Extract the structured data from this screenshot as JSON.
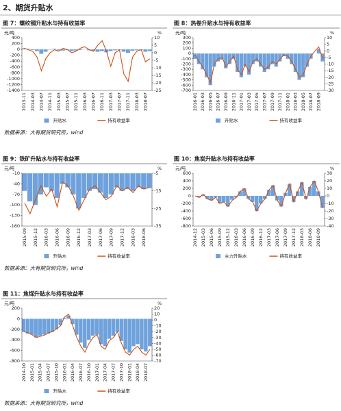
{
  "heading": "2、期货升贴水",
  "chart_data": [
    {
      "type": "bar-line",
      "title": "图 7：螺纹钢升贴水与持有收益率",
      "y_label": "元/吨",
      "y2_label": "%",
      "source": "数据来源：大有期货研究所，wind",
      "categories": [
        "2013-11",
        null,
        "2014-03",
        null,
        "2014-07",
        null,
        "2014-11",
        null,
        "2015-03",
        null,
        "2015-07",
        null,
        "2015-11",
        null,
        "2016-03",
        null,
        "2016-07",
        null,
        "2016-11",
        null,
        "2017-03",
        null,
        "2017-07",
        null,
        "2017-11",
        null,
        "2018-03",
        null,
        "2018-07",
        null
      ],
      "ylim": [
        -1400,
        400
      ],
      "yticks": [
        -1400,
        -1200,
        -1000,
        -800,
        -600,
        -400,
        -200,
        0,
        200,
        400
      ],
      "y2lim": [
        -25,
        10
      ],
      "y2ticks": [
        -25,
        -20,
        -15,
        -10,
        -5,
        0,
        5,
        10
      ],
      "series": [
        {
          "name": "升贴水",
          "color": "#6fa2dc",
          "values": [
            40,
            20,
            -20,
            -60,
            -150,
            -80,
            -10,
            20,
            -30,
            -40,
            -20,
            -60,
            -40,
            -20,
            10,
            -30,
            -50,
            -80,
            -60,
            -100,
            -60,
            -30,
            -20,
            -80,
            -120,
            -50,
            -30,
            -20,
            -80,
            -60
          ]
        },
        {
          "name": "持有收益率",
          "color": "#d0500f",
          "axis": "y2",
          "values": [
            3,
            2,
            1,
            -3,
            -12,
            -4,
            0,
            2,
            1,
            3,
            2,
            0,
            1,
            3,
            4,
            2,
            1,
            5,
            8,
            1,
            -9,
            0,
            2,
            -14,
            -19,
            -3,
            1,
            2,
            -6,
            -4
          ]
        }
      ]
    },
    {
      "type": "bar-line",
      "title": "图 8：热卷升贴水与持有收益率",
      "y_label": "元/吨",
      "y2_label": "%",
      "categories": [
        "2016-01",
        null,
        "2016-03",
        null,
        "2016-05",
        null,
        "2016-07",
        null,
        "2016-09",
        null,
        "2016-11",
        null,
        "2017-01",
        null,
        "2017-03",
        null,
        "2017-05",
        null,
        "2017-07",
        null,
        "2017-09",
        null,
        "2017-11",
        null,
        "2018-01",
        null,
        "2018-03",
        null,
        "2018-05",
        null,
        "2018-07",
        null,
        "2018-09",
        null
      ],
      "ylim": [
        -700,
        300
      ],
      "yticks": [
        -700,
        -600,
        -500,
        -400,
        -300,
        -200,
        -100,
        0,
        100,
        200,
        300
      ],
      "y2lim": [
        -30,
        10
      ],
      "y2ticks": [
        -30,
        -25,
        -20,
        -15,
        -10,
        -5,
        0,
        5,
        10
      ],
      "series": [
        {
          "name": "升贴水",
          "color": "#6fa2dc",
          "values": [
            -100,
            -200,
            -300,
            -450,
            -600,
            -250,
            -150,
            -120,
            -280,
            -200,
            -100,
            -350,
            -450,
            -250,
            -400,
            -200,
            -150,
            -250,
            -350,
            -300,
            -200,
            -250,
            -150,
            -50,
            -100,
            -200,
            -350,
            -500,
            -450,
            -250,
            -100,
            0,
            80,
            -150
          ]
        },
        {
          "name": "持有收益率",
          "color": "#d0500f",
          "axis": "y2",
          "values": [
            -3,
            -8,
            -12,
            -18,
            -24,
            -10,
            -6,
            -5,
            -12,
            -8,
            -4,
            -14,
            -18,
            -10,
            -16,
            -8,
            -6,
            -10,
            -14,
            -12,
            -8,
            -10,
            -6,
            -3,
            -4,
            -8,
            -14,
            -20,
            -18,
            -10,
            -4,
            0,
            3,
            -6
          ]
        }
      ]
    },
    {
      "type": "bar-line",
      "title": "图 9：铁矿升贴水与持有收益率",
      "y_label": "元/吨",
      "y2_label": "%",
      "source": "数据来源：大有期货研究所，wind",
      "categories": [
        "2015-09",
        null,
        "2015-12",
        null,
        "2016-03",
        null,
        "2016-06",
        null,
        "2016-09",
        null,
        "2016-12",
        null,
        "2017-03",
        null,
        "2017-06",
        null,
        "2017-09",
        null,
        "2017-12",
        null,
        "2018-03",
        null,
        "2018-06",
        null
      ],
      "ylim": [
        -160,
        -10
      ],
      "yticks": [
        -160,
        -130,
        -100,
        -70,
        -40,
        -10
      ],
      "y2lim": [
        -35,
        -5
      ],
      "y2ticks": [
        -35,
        -25,
        -15,
        -5
      ],
      "series": [
        {
          "name": "升贴水",
          "color": "#6fa2dc",
          "values": [
            -60,
            -90,
            -100,
            -70,
            -50,
            -60,
            -80,
            -40,
            -50,
            -70,
            -110,
            -80,
            -60,
            -55,
            -65,
            -80,
            -70,
            -50,
            -60,
            -55,
            -60,
            -50,
            -55,
            -52
          ]
        },
        {
          "name": "持有收益率",
          "color": "#d0500f",
          "axis": "y2",
          "values": [
            -22,
            -28,
            -20,
            -12,
            -18,
            -14,
            -24,
            -10,
            -12,
            -18,
            -26,
            -20,
            -14,
            -12,
            -16,
            -20,
            -18,
            -12,
            -15,
            -13,
            -16,
            -12,
            -14,
            -13
          ]
        }
      ]
    },
    {
      "type": "bar-line",
      "title": "图 10：焦炭升贴水与持有收益率",
      "y_label": "元/吨",
      "y2_label": "%",
      "categories": [
        "2014-12",
        null,
        "2015-03",
        null,
        "2015-06",
        null,
        "2015-09",
        null,
        "2015-12",
        null,
        "2016-03",
        null,
        "2016-06",
        null,
        "2016-09",
        null,
        "2016-12",
        null,
        "2017-03",
        null,
        "2017-06",
        null,
        "2017-09",
        null,
        "2017-12",
        null,
        "2018-03",
        null,
        "2018-06",
        null,
        "2018-09",
        null
      ],
      "ylim": [
        -800,
        600
      ],
      "yticks": [
        -800,
        -600,
        -400,
        -200,
        0,
        200,
        400,
        600
      ],
      "y2lim": [
        -40,
        30
      ],
      "y2ticks": [
        -40,
        -30,
        -20,
        -10,
        0,
        10,
        20,
        30
      ],
      "series": [
        {
          "name": "主力升贴水",
          "color": "#6fa2dc",
          "values": [
            0,
            -40,
            40,
            -80,
            -120,
            -40,
            -200,
            -160,
            -280,
            -100,
            -40,
            120,
            200,
            -80,
            -160,
            -400,
            -200,
            -80,
            160,
            280,
            -120,
            -280,
            80,
            320,
            -160,
            120,
            360,
            -80,
            240,
            400,
            120,
            -320
          ]
        },
        {
          "name": "持有收益率",
          "color": "#d0500f",
          "axis": "y2",
          "values": [
            0,
            -2,
            2,
            -4,
            -6,
            -2,
            -10,
            -8,
            -14,
            -6,
            -2,
            6,
            10,
            -4,
            -8,
            -20,
            -10,
            -4,
            8,
            14,
            -6,
            -14,
            4,
            16,
            -8,
            6,
            18,
            -4,
            12,
            20,
            6,
            -16
          ]
        }
      ]
    },
    {
      "type": "bar-line",
      "title": "图 11：焦煤升贴水与持有收益率",
      "y_label": "元/吨",
      "y2_label": "%",
      "source": "数据来源：大有期货研究所，wind",
      "categories": [
        "2014-10",
        null,
        "2015-01",
        null,
        "2015-04",
        null,
        "2015-07",
        null,
        "2015-10",
        null,
        "2016-01",
        null,
        "2016-04",
        null,
        "2016-07",
        null,
        "2016-10",
        null,
        "2017-01",
        null,
        "2017-04",
        null,
        "2017-07",
        null,
        "2017-10",
        null,
        "2018-01",
        null,
        "2018-04",
        null,
        "2018-07",
        null
      ],
      "ylim": [
        -800,
        200
      ],
      "yticks": [
        -800,
        -600,
        -400,
        -200,
        0,
        200
      ],
      "y2lim": [
        -70,
        20
      ],
      "y2ticks": [
        -70,
        -60,
        -50,
        -40,
        -30,
        -20,
        -10,
        0,
        10,
        20
      ],
      "series": [
        {
          "name": "升贴水",
          "color": "#6fa2dc",
          "values": [
            -250,
            -280,
            -300,
            -350,
            -320,
            -300,
            -280,
            -250,
            -200,
            -120,
            20,
            60,
            -100,
            -300,
            -450,
            -550,
            -400,
            -320,
            -300,
            -480,
            -520,
            -380,
            -320,
            -250,
            -420,
            -580,
            -640,
            -520,
            -480,
            -580,
            -620,
            -520
          ]
        },
        {
          "name": "持有收益率",
          "color": "#d0500f",
          "axis": "y2",
          "values": [
            -20,
            -22,
            -25,
            -30,
            -28,
            -26,
            -22,
            -20,
            -15,
            -10,
            5,
            10,
            -10,
            -30,
            -45,
            -55,
            -40,
            -30,
            -25,
            -45,
            -50,
            -35,
            -30,
            -20,
            -40,
            -55,
            -60,
            -50,
            -45,
            -55,
            -60,
            -50
          ]
        }
      ]
    }
  ]
}
